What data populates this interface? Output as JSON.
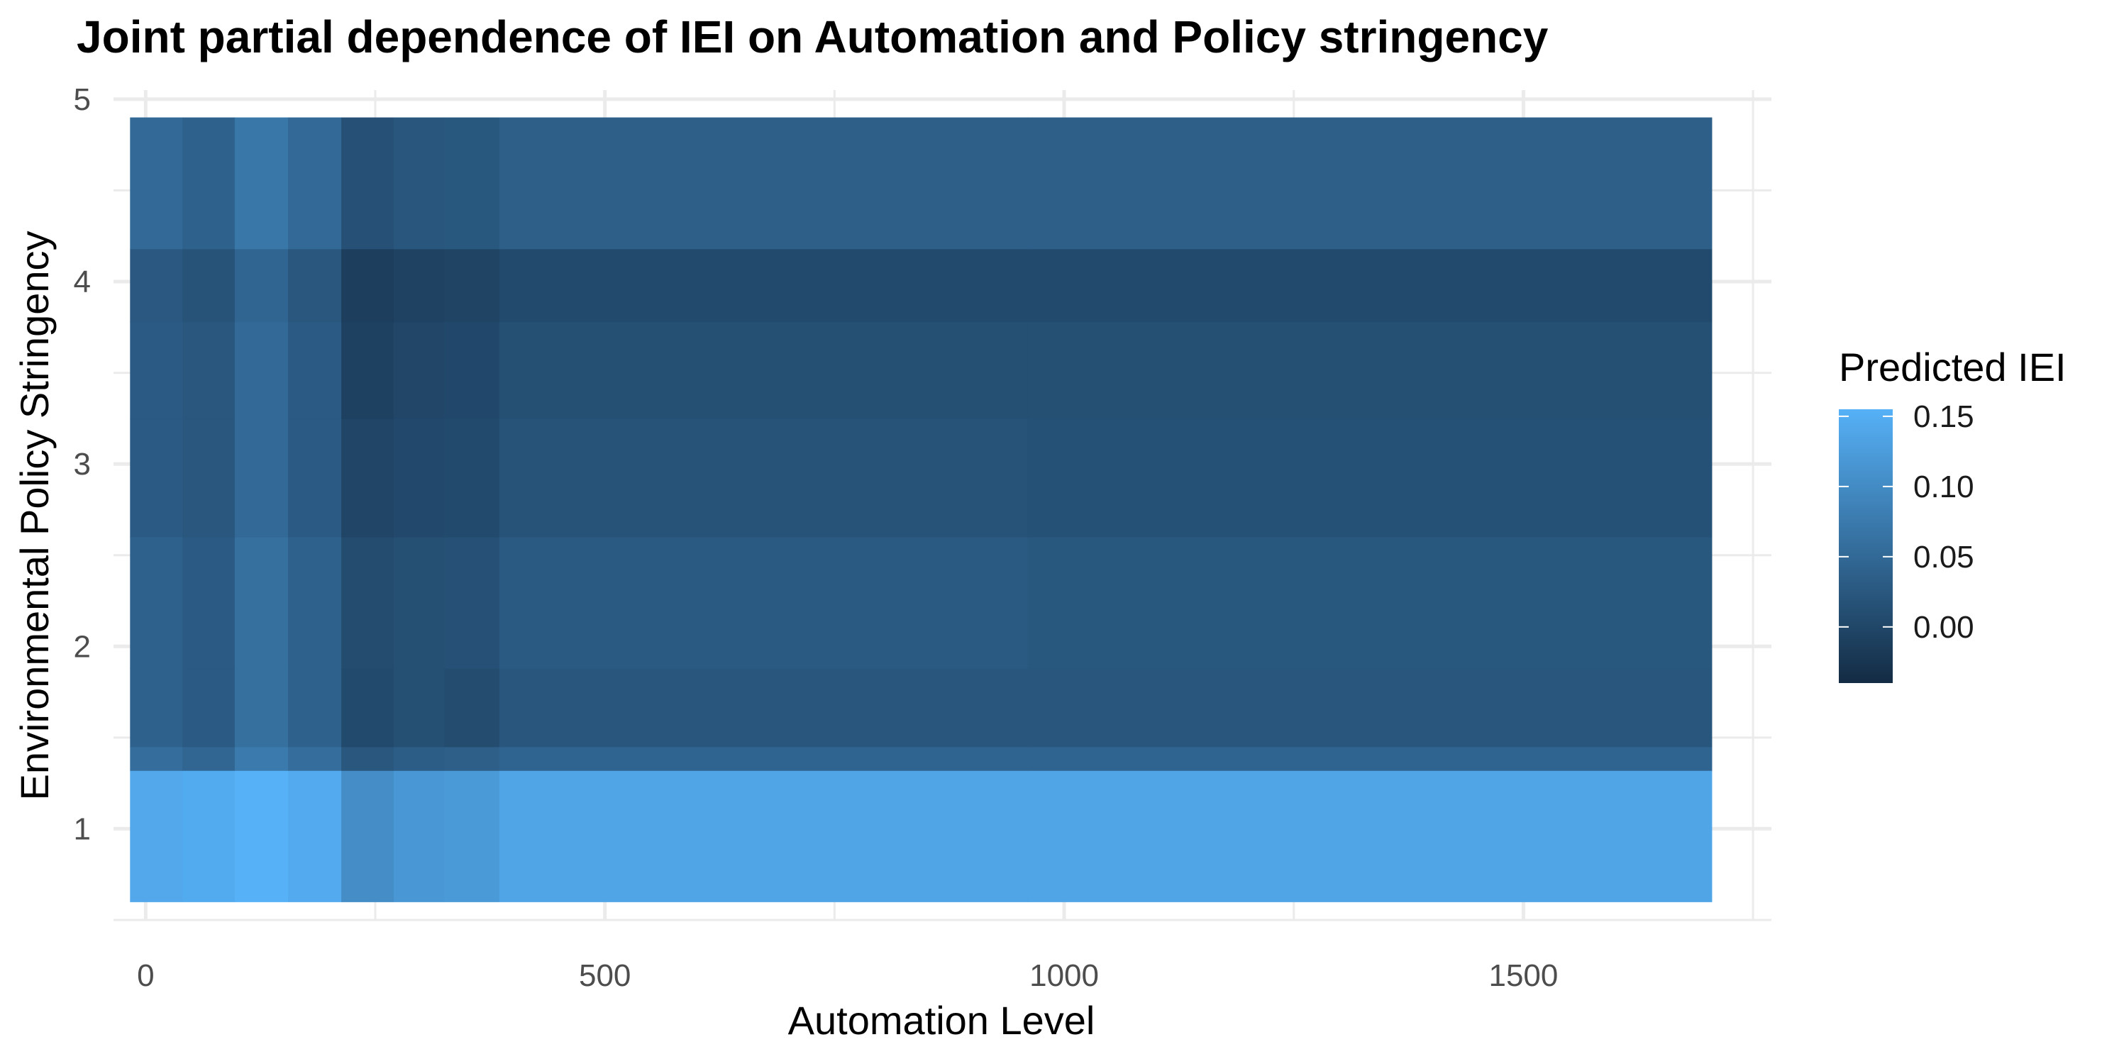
{
  "chart_data": {
    "type": "heatmap",
    "title": "Joint partial dependence of IEI on Automation and Policy stringency",
    "xlabel": "Automation Level",
    "ylabel": "Environmental Policy Stringency",
    "xlim": [
      -35,
      1770
    ],
    "ylim": [
      0.5,
      5.05
    ],
    "xticks": [
      0,
      500,
      1000,
      1500
    ],
    "yticks": [
      1,
      2,
      3,
      4,
      5
    ],
    "grid": true,
    "x_edges": [
      -17,
      40,
      97,
      155,
      213,
      270,
      325,
      385,
      960,
      1705
    ],
    "y_edges": [
      0.6,
      1.32,
      1.45,
      1.88,
      2.6,
      3.25,
      3.78,
      4.18,
      4.9
    ],
    "values": [
      [
        0.142,
        0.146,
        0.16,
        0.145,
        0.103,
        0.118,
        0.121,
        0.138,
        0.138
      ],
      [
        0.058,
        0.046,
        0.075,
        0.058,
        0.024,
        0.033,
        0.035,
        0.043,
        0.043
      ],
      [
        0.04,
        0.03,
        0.06,
        0.04,
        0.005,
        0.012,
        0.008,
        0.022,
        0.022
      ],
      [
        0.04,
        0.03,
        0.06,
        0.04,
        0.008,
        0.012,
        0.014,
        0.028,
        0.025
      ],
      [
        0.03,
        0.024,
        0.05,
        0.03,
        -0.002,
        0.004,
        0.005,
        0.018,
        0.016
      ],
      [
        0.03,
        0.024,
        0.05,
        0.03,
        -0.008,
        0.0,
        0.002,
        0.012,
        0.012
      ],
      [
        0.026,
        0.018,
        0.045,
        0.024,
        -0.012,
        -0.006,
        -0.004,
        0.005,
        0.005
      ],
      [
        0.05,
        0.04,
        0.07,
        0.05,
        0.014,
        0.022,
        0.025,
        0.036,
        0.036
      ]
    ],
    "legend": {
      "title": "Predicted IEI",
      "position": "right",
      "min": -0.04,
      "max": 0.155,
      "ticks": [
        0.15,
        0.1,
        0.05,
        0.0
      ],
      "tick_labels": [
        "0.15",
        "0.10",
        "0.05",
        "0.00"
      ],
      "low_color": "#132b43",
      "high_color": "#56b1f7"
    }
  }
}
